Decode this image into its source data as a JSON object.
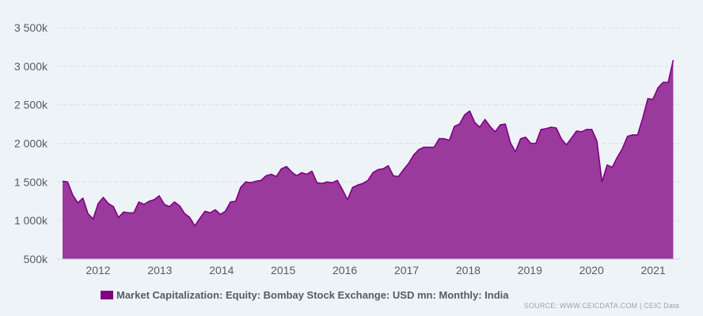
{
  "chart_data": {
    "type": "area",
    "ylim": [
      500,
      3500
    ],
    "y_ticks": [
      500,
      1000,
      1500,
      2000,
      2500,
      3000,
      3500
    ],
    "y_tick_labels": [
      "500k",
      "1 000k",
      "1 500k",
      "2 000k",
      "2 500k",
      "3 000k",
      "3 500k"
    ],
    "x_ticks": [
      2012,
      2013,
      2014,
      2015,
      2016,
      2017,
      2018,
      2019,
      2020,
      2021
    ],
    "x_tick_labels": [
      "2012",
      "2013",
      "2014",
      "2015",
      "2016",
      "2017",
      "2018",
      "2019",
      "2020",
      "2021"
    ],
    "x_start": "2011-06",
    "frequency": "monthly",
    "grid": "horizontal-dashed",
    "legend_position": "bottom-left",
    "series": [
      {
        "name": "Market Capitalization: Equity: Bombay Stock Exchange: USD mn: Monthly: India",
        "color": "#800080",
        "fill_color": "#9a3a9d",
        "values": [
          1510,
          1500,
          1330,
          1230,
          1290,
          1090,
          1020,
          1220,
          1300,
          1220,
          1180,
          1040,
          1110,
          1100,
          1100,
          1240,
          1210,
          1250,
          1270,
          1320,
          1210,
          1180,
          1240,
          1190,
          1090,
          1040,
          930,
          1030,
          1120,
          1100,
          1140,
          1080,
          1120,
          1240,
          1250,
          1430,
          1500,
          1490,
          1510,
          1520,
          1580,
          1600,
          1570,
          1670,
          1700,
          1630,
          1580,
          1620,
          1600,
          1640,
          1490,
          1480,
          1500,
          1490,
          1520,
          1400,
          1270,
          1430,
          1460,
          1480,
          1520,
          1620,
          1660,
          1670,
          1710,
          1580,
          1570,
          1660,
          1740,
          1850,
          1920,
          1950,
          1950,
          1950,
          2060,
          2060,
          2040,
          2220,
          2250,
          2370,
          2420,
          2270,
          2210,
          2310,
          2220,
          2150,
          2240,
          2250,
          2010,
          1890,
          2060,
          2080,
          2000,
          2000,
          2180,
          2190,
          2210,
          2200,
          2060,
          1980,
          2070,
          2160,
          2150,
          2180,
          2180,
          2030,
          1500,
          1720,
          1690,
          1820,
          1930,
          2090,
          2110,
          2110,
          2330,
          2580,
          2570,
          2720,
          2790,
          2790,
          3080
        ]
      }
    ]
  },
  "source_text": "SOURCE: WWW.CEICDATA.COM | CEIC Data"
}
